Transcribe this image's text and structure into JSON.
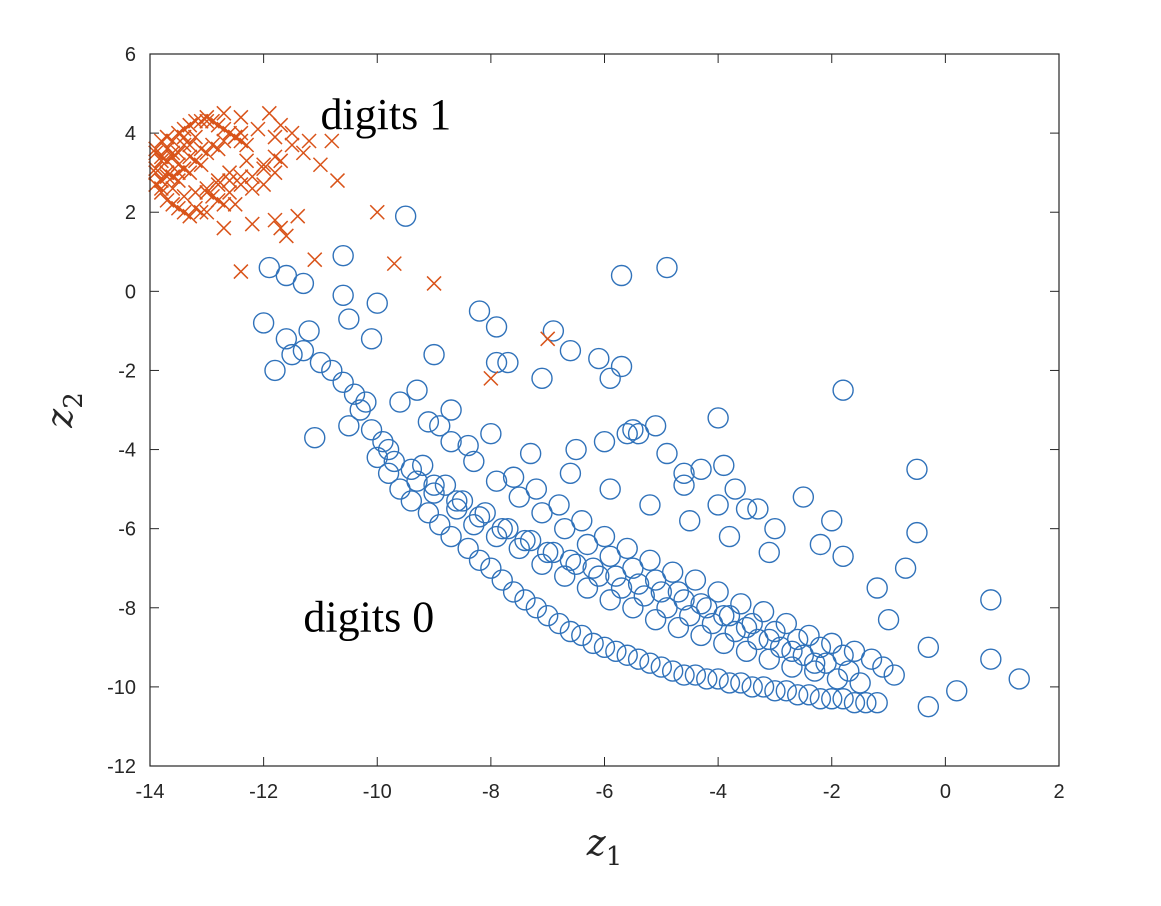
{
  "chart_data": {
    "type": "scatter",
    "xlabel": "z",
    "xlabel_sub": "1",
    "ylabel": "z",
    "ylabel_sub": "2",
    "xlim": [
      -14,
      2
    ],
    "ylim": [
      -12,
      6
    ],
    "xticks": [
      -14,
      -12,
      -10,
      -8,
      -6,
      -4,
      -2,
      0,
      2
    ],
    "yticks": [
      -12,
      -10,
      -8,
      -6,
      -4,
      -2,
      0,
      2,
      4,
      6
    ],
    "grid": false,
    "box": true,
    "annotations": [
      {
        "text": "digits 1",
        "x": -11.0,
        "y": 4.1
      },
      {
        "text": "digits 0",
        "x": -11.3,
        "y": -8.6
      }
    ],
    "series": [
      {
        "marker": "circle",
        "color": "#3072BA",
        "x": [
          -9.5,
          -5.7,
          -4.9,
          -11.9,
          -11.6,
          -11.3,
          -10.6,
          -10.6,
          -10.0,
          -12.0,
          -11.8,
          -11.5,
          -11.2,
          -10.5,
          -10.1,
          -9.0,
          -8.2,
          -7.9,
          -6.9,
          -6.6,
          -6.1,
          -5.9,
          -5.7,
          -7.9,
          -7.7,
          -7.1,
          -11.6,
          -11.1,
          -10.5,
          -1.8,
          -0.5,
          -0.5,
          -0.3,
          0.8,
          0.8,
          1.3,
          0.2,
          -0.3,
          -0.7,
          -1.2,
          -1.0,
          -2.2,
          -2.5,
          -2.0,
          -1.8,
          -3.5,
          -3.9,
          -4.6,
          -5.1,
          -5.5,
          -4.0,
          -10.0,
          -9.8,
          -9.6,
          -9.4,
          -9.1,
          -8.9,
          -8.7,
          -8.4,
          -8.2,
          -8.0,
          -7.8,
          -7.6,
          -7.4,
          -7.2,
          -7.0,
          -6.8,
          -6.6,
          -6.4,
          -6.2,
          -6.0,
          -5.8,
          -5.6,
          -5.4,
          -5.2,
          -5.0,
          -4.8,
          -4.6,
          -4.4,
          -4.2,
          -4.0,
          -3.8,
          -3.6,
          -3.4,
          -3.2,
          -3.0,
          -2.8,
          -2.6,
          -2.4,
          -2.2,
          -2.0,
          -1.8,
          -1.6,
          -1.4,
          -1.2,
          -9.9,
          -9.7,
          -9.3,
          -9.0,
          -8.6,
          -8.3,
          -7.9,
          -7.5,
          -7.1,
          -6.7,
          -6.3,
          -5.9,
          -5.5,
          -5.1,
          -4.7,
          -4.3,
          -3.9,
          -3.5,
          -3.1,
          -2.7,
          -2.3,
          -1.9,
          -1.5,
          -9.2,
          -8.8,
          -8.5,
          -8.1,
          -7.7,
          -7.3,
          -6.9,
          -6.5,
          -6.1,
          -5.7,
          -5.3,
          -4.9,
          -4.5,
          -4.1,
          -3.7,
          -3.3,
          -2.9,
          -2.5,
          -2.1,
          -1.7,
          -10.3,
          -10.1,
          -9.8,
          -9.4,
          -9.0,
          -8.6,
          -8.2,
          -7.8,
          -7.4,
          -7.0,
          -6.6,
          -6.2,
          -5.8,
          -5.4,
          -5.0,
          -4.6,
          -4.2,
          -3.8,
          -3.4,
          -3.0,
          -2.6,
          -2.2,
          -1.8,
          -10.6,
          -10.4,
          -10.2,
          -10.8,
          -11.0,
          -11.3,
          -8.9,
          -8.4,
          -7.6,
          -7.2,
          -6.8,
          -6.4,
          -6.0,
          -5.6,
          -5.2,
          -4.8,
          -4.4,
          -4.0,
          -3.6,
          -3.2,
          -2.8,
          -2.4,
          -2.0,
          -1.6,
          -1.3,
          -1.1,
          -0.9,
          -9.6,
          -9.1,
          -8.7,
          -8.3,
          -7.9,
          -7.5,
          -7.1,
          -6.7,
          -6.3,
          -5.9,
          -5.5,
          -5.1,
          -4.7,
          -4.3,
          -3.9,
          -3.5,
          -3.1,
          -2.7,
          -2.3,
          -9.3,
          -8.7,
          -8.0,
          -7.3,
          -6.6,
          -5.9,
          -5.2,
          -4.5,
          -3.8,
          -3.1,
          -6.5,
          -6.0,
          -5.4,
          -4.9,
          -4.3,
          -3.7,
          -3.3,
          -5.6,
          -4.6,
          -4.0,
          -3.0
        ],
        "y": [
          1.9,
          0.4,
          0.6,
          0.6,
          0.4,
          0.2,
          0.9,
          -0.1,
          -0.3,
          -0.8,
          -2.0,
          -1.6,
          -1.0,
          -0.7,
          -1.2,
          -1.6,
          -0.5,
          -0.9,
          -1.0,
          -1.5,
          -1.7,
          -2.2,
          -1.9,
          -1.8,
          -1.8,
          -2.2,
          -1.2,
          -3.7,
          -3.4,
          -2.5,
          -4.5,
          -6.1,
          -9.0,
          -7.8,
          -9.3,
          -9.8,
          -10.1,
          -10.5,
          -7.0,
          -7.5,
          -8.3,
          -6.4,
          -5.2,
          -5.8,
          -6.7,
          -5.5,
          -4.4,
          -4.6,
          -3.4,
          -3.5,
          -3.2,
          -4.2,
          -4.6,
          -5.0,
          -5.3,
          -5.6,
          -5.9,
          -6.2,
          -6.5,
          -6.8,
          -7.0,
          -7.3,
          -7.6,
          -7.8,
          -8.0,
          -8.2,
          -8.4,
          -8.6,
          -8.7,
          -8.9,
          -9.0,
          -9.1,
          -9.2,
          -9.3,
          -9.4,
          -9.5,
          -9.6,
          -9.7,
          -9.7,
          -9.8,
          -9.8,
          -9.9,
          -9.9,
          -10.0,
          -10.0,
          -10.1,
          -10.1,
          -10.2,
          -10.2,
          -10.3,
          -10.3,
          -10.3,
          -10.4,
          -10.4,
          -10.4,
          -3.8,
          -4.3,
          -4.8,
          -5.1,
          -5.5,
          -5.9,
          -6.2,
          -6.5,
          -6.9,
          -7.2,
          -7.5,
          -7.8,
          -8.0,
          -8.3,
          -8.5,
          -8.7,
          -8.9,
          -9.1,
          -9.3,
          -9.5,
          -9.6,
          -9.8,
          -9.9,
          -4.4,
          -4.9,
          -5.3,
          -5.6,
          -6.0,
          -6.3,
          -6.6,
          -6.9,
          -7.2,
          -7.5,
          -7.7,
          -8.0,
          -8.2,
          -8.4,
          -8.6,
          -8.8,
          -9.0,
          -9.2,
          -9.4,
          -9.6,
          -3.0,
          -3.5,
          -4.0,
          -4.5,
          -4.9,
          -5.3,
          -5.7,
          -6.0,
          -6.3,
          -6.6,
          -6.8,
          -7.0,
          -7.2,
          -7.4,
          -7.6,
          -7.8,
          -8.0,
          -8.2,
          -8.4,
          -8.6,
          -8.8,
          -9.0,
          -9.2,
          -2.3,
          -2.6,
          -2.8,
          -2.0,
          -1.8,
          -1.5,
          -3.4,
          -3.9,
          -4.7,
          -5.0,
          -5.4,
          -5.8,
          -6.2,
          -6.5,
          -6.8,
          -7.1,
          -7.3,
          -7.6,
          -7.9,
          -8.1,
          -8.4,
          -8.7,
          -8.9,
          -9.1,
          -9.3,
          -9.5,
          -9.7,
          -2.8,
          -3.3,
          -3.8,
          -4.3,
          -4.8,
          -5.2,
          -5.6,
          -6.0,
          -6.4,
          -6.7,
          -7.0,
          -7.3,
          -7.6,
          -7.9,
          -8.2,
          -8.5,
          -8.8,
          -9.1,
          -9.4,
          -2.5,
          -3.0,
          -3.6,
          -4.1,
          -4.6,
          -5.0,
          -5.4,
          -5.8,
          -6.2,
          -6.6,
          -4.0,
          -3.8,
          -3.6,
          -4.1,
          -4.5,
          -5.0,
          -5.5,
          -3.6,
          -4.9,
          -5.4,
          -6.0
        ]
      },
      {
        "marker": "x",
        "color": "#D95319",
        "x": [
          -13.9,
          -13.8,
          -13.7,
          -13.6,
          -13.5,
          -13.4,
          -13.3,
          -13.2,
          -13.1,
          -13.0,
          -12.9,
          -12.8,
          -12.7,
          -12.6,
          -12.5,
          -12.4,
          -12.3,
          -13.8,
          -13.6,
          -13.4,
          -13.2,
          -13.0,
          -12.8,
          -12.6,
          -12.4,
          -13.9,
          -13.7,
          -13.5,
          -13.3,
          -13.1,
          -12.9,
          -12.7,
          -12.5,
          -13.8,
          -13.6,
          -13.4,
          -13.2,
          -13.0,
          -12.8,
          -13.9,
          -13.7,
          -13.5,
          -13.3,
          -13.1,
          -13.8,
          -13.6,
          -13.4,
          -13.2,
          -13.9,
          -13.7,
          -13.5,
          -13.3,
          -13.8,
          -13.6,
          -13.4,
          -13.9,
          -13.7,
          -13.5,
          -13.8,
          -13.6,
          -13.4,
          -13.7,
          -13.5,
          -13.2,
          -13.0,
          -12.8,
          -12.6,
          -12.4,
          -12.2,
          -12.0,
          -11.8,
          -11.9,
          -11.7,
          -11.5,
          -11.3,
          -11.2,
          -11.0,
          -11.8,
          -12.0,
          -12.2,
          -12.5,
          -12.7,
          -12.9,
          -13.1,
          -13.3,
          -12.4,
          -12.1,
          -11.8,
          -11.5,
          -12.6,
          -12.8,
          -13.0,
          -12.3,
          -12.0,
          -11.7,
          -13.0,
          -12.7,
          -12.4,
          -11.8,
          -11.4,
          -11.7,
          -10.8,
          -10.7,
          -11.6,
          -11.1,
          -10.0,
          -9.7,
          -9.0,
          -7.0,
          -8.0,
          -12.7,
          -12.2,
          -12.4
        ],
        "y": [
          3.0,
          3.3,
          3.6,
          3.8,
          4.0,
          4.1,
          4.2,
          4.3,
          4.3,
          4.3,
          4.3,
          4.2,
          4.1,
          4.0,
          3.9,
          3.8,
          3.7,
          2.8,
          2.6,
          2.4,
          2.5,
          2.6,
          2.7,
          2.8,
          2.9,
          3.5,
          3.9,
          3.2,
          3.4,
          3.6,
          3.7,
          3.8,
          3.9,
          2.5,
          2.9,
          3.1,
          3.3,
          3.5,
          3.6,
          2.7,
          3.0,
          2.8,
          3.0,
          3.2,
          3.4,
          3.5,
          3.7,
          3.9,
          3.1,
          3.3,
          3.5,
          3.7,
          3.8,
          3.4,
          3.9,
          3.6,
          2.9,
          3.0,
          2.6,
          2.2,
          2.0,
          2.3,
          2.1,
          2.1,
          2.0,
          2.3,
          2.5,
          2.7,
          2.9,
          3.2,
          3.4,
          4.5,
          4.2,
          4.0,
          3.5,
          3.8,
          3.2,
          3.0,
          2.7,
          2.6,
          2.2,
          2.2,
          2.4,
          2.0,
          1.9,
          4.4,
          4.1,
          3.9,
          3.7,
          3.0,
          2.8,
          2.5,
          3.3,
          3.1,
          3.3,
          4.4,
          4.5,
          4.0,
          1.8,
          1.9,
          1.6,
          3.8,
          2.8,
          1.4,
          0.8,
          2.0,
          0.7,
          0.2,
          -1.2,
          -2.2,
          1.6,
          1.7,
          0.5
        ]
      }
    ]
  }
}
